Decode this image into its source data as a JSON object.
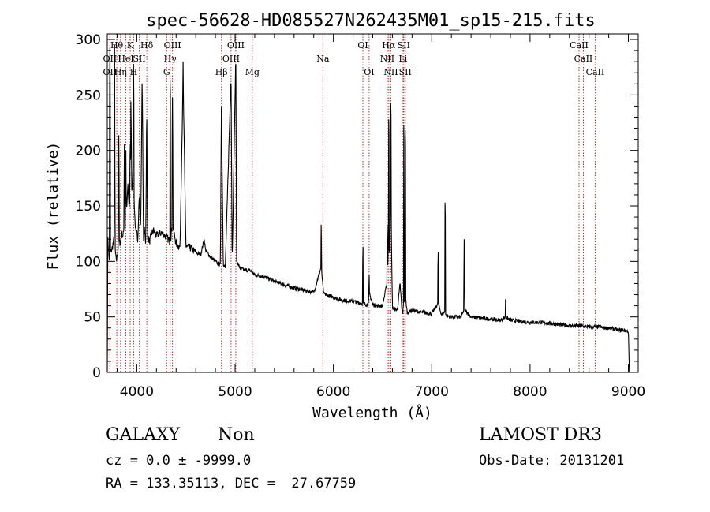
{
  "chart_data": {
    "type": "line",
    "title": "spec-56628-HD085527N262435M01_sp15-215.fits",
    "xlabel": "Wavelength (Å)",
    "ylabel": "Flux (relative)",
    "xlim": [
      3700,
      9100
    ],
    "ylim": [
      0,
      305
    ],
    "xticks": [
      4000,
      5000,
      6000,
      7000,
      8000,
      9000
    ],
    "yticks": [
      0,
      50,
      100,
      150,
      200,
      250,
      300
    ],
    "line_color": "#000000",
    "marker_color": "#b03030",
    "series": [
      {
        "name": "flux",
        "x": [
          3700,
          3705,
          3712,
          3720,
          3735,
          3750,
          3765,
          3770,
          3775,
          3780,
          3790,
          3800,
          3812,
          3818,
          3822,
          3835,
          3845,
          3860,
          3868,
          3875,
          3880,
          3890,
          3900,
          3910,
          3920,
          3930,
          3934,
          3940,
          3950,
          3960,
          3965,
          3968,
          3971,
          3980,
          3990,
          4000,
          4010,
          4025,
          4040,
          4055,
          4068,
          4075,
          4090,
          4101,
          4110,
          4130,
          4150,
          4170,
          4200,
          4250,
          4300,
          4340,
          4363,
          4400,
          4440,
          4471,
          4500,
          4550,
          4600,
          4650,
          4686,
          4700,
          4750,
          4800,
          4850,
          4861,
          4880,
          4900,
          4959,
          4970,
          5007,
          5015,
          5050,
          5100,
          5150,
          5200,
          5300,
          5400,
          5500,
          5600,
          5700,
          5800,
          5876,
          5900,
          5950,
          6000,
          6050,
          6100,
          6200,
          6300,
          6350,
          6370,
          6400,
          6450,
          6500,
          6548,
          6563,
          6570,
          6584,
          6600,
          6650,
          6678,
          6700,
          6716,
          6731,
          6750,
          6800,
          6900,
          7000,
          7065,
          7100,
          7136,
          7150,
          7200,
          7300,
          7330,
          7400,
          7500,
          7600,
          7700,
          7751,
          7800,
          7900,
          8000,
          8100,
          8200,
          8300,
          8400,
          8500,
          8600,
          8700,
          8750,
          8800,
          8850,
          8900,
          8950,
          9000,
          9010
        ],
        "y": [
          0,
          120,
          112,
          102,
          108,
          112,
          118,
          125,
          292,
          110,
          101,
          104,
          114,
          230,
          116,
          118,
          125,
          122,
          130,
          220,
          129,
          145,
          150,
          170,
          148,
          155,
          140,
          245,
          158,
          180,
          210,
          280,
          160,
          140,
          125,
          125,
          120,
          160,
          128,
          270,
          120,
          130,
          118,
          220,
          122,
          118,
          125,
          128,
          123,
          126,
          122,
          118,
          133,
          116,
          113,
          265,
          113,
          112,
          108,
          106,
          120,
          110,
          104,
          100,
          96,
          240,
          98,
          94,
          268,
          98,
          285,
          100,
          94,
          92,
          92,
          88,
          86,
          82,
          79,
          76,
          74,
          72,
          95,
          71,
          69,
          68,
          66,
          65,
          64,
          62,
          61,
          70,
          61,
          60,
          60,
          82,
          125,
          105,
          160,
          58,
          56,
          80,
          52,
          62,
          70,
          54,
          56,
          54,
          53,
          62,
          52,
          55,
          51,
          50,
          50,
          57,
          50,
          49,
          48,
          47,
          50,
          47,
          46,
          45,
          45,
          44,
          43,
          42,
          42,
          41,
          41,
          40,
          40,
          39,
          38,
          38,
          37,
          0
        ],
        "peaks": [
          [
            3727,
            293
          ],
          [
            3889,
            200
          ],
          [
            3933,
            218
          ],
          [
            3967,
            278
          ],
          [
            4101,
            240
          ],
          [
            4340,
            275
          ],
          [
            4363,
            248
          ],
          [
            4471,
            280
          ],
          [
            4861,
            240
          ],
          [
            4959,
            270
          ],
          [
            5007,
            290
          ],
          [
            5876,
            145
          ],
          [
            6300,
            125
          ],
          [
            6363,
            100
          ],
          [
            6548,
            145
          ],
          [
            6563,
            240
          ],
          [
            6584,
            255
          ],
          [
            6716,
            235
          ],
          [
            6731,
            230
          ],
          [
            7065,
            120
          ],
          [
            7136,
            165
          ],
          [
            7330,
            120
          ],
          [
            7751,
            78
          ],
          [
            8240,
            55
          ]
        ]
      }
    ],
    "line_markers": [
      {
        "wl": 3727,
        "label": "OII",
        "row": 1
      },
      {
        "wl": 3727,
        "label": "OII",
        "row": 2
      },
      {
        "wl": 3797,
        "label": "Hθ",
        "row": 0
      },
      {
        "wl": 3835,
        "label": "Hη",
        "row": 2
      },
      {
        "wl": 3889,
        "label": "HeI",
        "row": 1
      },
      {
        "wl": 3933,
        "label": "K",
        "row": 0
      },
      {
        "wl": 3968,
        "label": "H",
        "row": 2
      },
      {
        "wl": 4026,
        "label": "SII",
        "row": 1
      },
      {
        "wl": 4102,
        "label": "Hδ",
        "row": 0
      },
      {
        "wl": 4304,
        "label": "G",
        "row": 2
      },
      {
        "wl": 4340,
        "label": "Hγ",
        "row": 1
      },
      {
        "wl": 4363,
        "label": "OIII",
        "row": 0
      },
      {
        "wl": 4861,
        "label": "Hβ",
        "row": 2
      },
      {
        "wl": 4959,
        "label": "OIII",
        "row": 1
      },
      {
        "wl": 5007,
        "label": "OIII",
        "row": 0
      },
      {
        "wl": 5175,
        "label": "Mg",
        "row": 2
      },
      {
        "wl": 5893,
        "label": "Na",
        "row": 1
      },
      {
        "wl": 6300,
        "label": "OI",
        "row": 0
      },
      {
        "wl": 6363,
        "label": "OI",
        "row": 2
      },
      {
        "wl": 6548,
        "label": "NII",
        "row": 1
      },
      {
        "wl": 6563,
        "label": "Hα",
        "row": 0
      },
      {
        "wl": 6584,
        "label": "NII",
        "row": 2
      },
      {
        "wl": 6716,
        "label": "SII",
        "row": 0
      },
      {
        "wl": 6708,
        "label": "Li",
        "row": 1
      },
      {
        "wl": 6731,
        "label": "SII",
        "row": 2
      },
      {
        "wl": 8498,
        "label": "CaII",
        "row": 0
      },
      {
        "wl": 8542,
        "label": "CaII",
        "row": 1
      },
      {
        "wl": 8662,
        "label": "CaII",
        "row": 2
      }
    ]
  },
  "info": {
    "class_label": "GALAXY",
    "subclass_label": "Non",
    "survey_label": "LAMOST DR3",
    "redshift_text": "cz = 0.0 ± -9999.0",
    "obs_date_text": "Obs-Date: 20131201",
    "coords_text": "RA = 133.35113, DEC =  27.67759"
  }
}
